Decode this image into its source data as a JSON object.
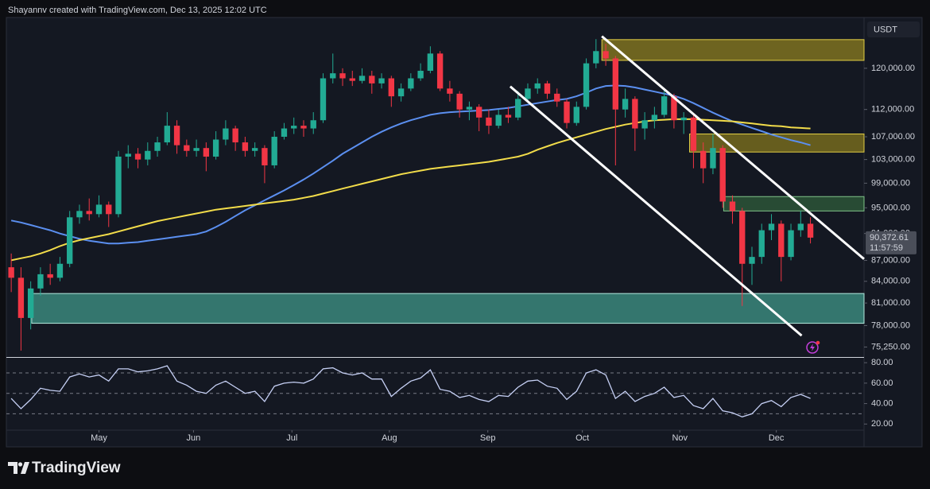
{
  "header": {
    "text": "Shayannv created with TradingView.com, Dec 13, 2025 12:02 UTC"
  },
  "footer": {
    "brand": "TradingView"
  },
  "chart_data": [
    {
      "type": "candlestick",
      "axis_label": "USDT",
      "scale": "log",
      "grid": false,
      "xlim": [
        0,
        88
      ],
      "ylim": [
        74000,
        131000
      ],
      "yticks": [
        {
          "value": 120000,
          "label": "120,000.00"
        },
        {
          "value": 112000,
          "label": "112,000.00"
        },
        {
          "value": 107000,
          "label": "107,000.00"
        },
        {
          "value": 103000,
          "label": "103,000.00"
        },
        {
          "value": 99000,
          "label": "99,000.00"
        },
        {
          "value": 95000,
          "label": "95,000.00"
        },
        {
          "value": 91000,
          "label": "91,000.00"
        },
        {
          "value": 87000,
          "label": "87,000.00"
        },
        {
          "value": 84000,
          "label": "84,000.00"
        },
        {
          "value": 81000,
          "label": "81,000.00"
        },
        {
          "value": 78000,
          "label": "78,000.00"
        },
        {
          "value": 75250,
          "label": "75,250.00"
        }
      ],
      "up_color": "#22ab94",
      "down_color": "#f23645",
      "candles": {
        "open": [
          86000,
          84500,
          79000,
          83000,
          85000,
          84500,
          86500,
          93500,
          94500,
          94000,
          95500,
          94000,
          103500,
          104000,
          103000,
          104500,
          106000,
          109000,
          105500,
          104500,
          105000,
          103500,
          106500,
          108500,
          106000,
          104500,
          105000,
          102000,
          107000,
          108500,
          109000,
          108500,
          110000,
          118000,
          119000,
          118000,
          117500,
          118500,
          117000,
          118000,
          114500,
          116000,
          118000,
          119500,
          123000,
          116000,
          115000,
          112000,
          112500,
          110500,
          109000,
          111000,
          110500,
          114000,
          116000,
          117000,
          115000,
          113500,
          109500,
          112500,
          121000,
          123500,
          122000,
          112000,
          114000,
          108500,
          110000,
          111000,
          114500,
          110000,
          110500,
          104500,
          101500,
          105000,
          96000,
          94500,
          86500,
          87500,
          91500,
          92500,
          87500,
          91500,
          92500
        ],
        "high": [
          88000,
          86000,
          84000,
          86000,
          86500,
          87500,
          94500,
          95500,
          96500,
          97000,
          96000,
          104500,
          105500,
          105000,
          106000,
          107000,
          111500,
          110000,
          106500,
          106500,
          106000,
          108000,
          110000,
          109000,
          107000,
          106000,
          105500,
          108000,
          109500,
          110500,
          110000,
          111500,
          119000,
          123000,
          120000,
          119500,
          120000,
          119500,
          119000,
          118500,
          117000,
          119000,
          121000,
          124500,
          123500,
          117500,
          115500,
          113500,
          113000,
          112000,
          112000,
          112500,
          115500,
          117000,
          118000,
          117500,
          116000,
          114000,
          113500,
          122000,
          126000,
          125000,
          122500,
          116000,
          114500,
          111500,
          112500,
          116000,
          115000,
          111500,
          111000,
          106000,
          107500,
          105500,
          97000,
          95000,
          89000,
          92500,
          94000,
          93000,
          92500,
          94500,
          93500
        ],
        "low": [
          82500,
          74800,
          77500,
          82000,
          83500,
          84000,
          86000,
          92500,
          93000,
          93500,
          92000,
          93500,
          101500,
          101500,
          102000,
          103500,
          105500,
          104000,
          103500,
          103500,
          101000,
          103000,
          105500,
          104500,
          103500,
          103500,
          99000,
          101500,
          106500,
          107500,
          107000,
          107500,
          109500,
          117000,
          116500,
          116500,
          117000,
          115000,
          116000,
          112500,
          113500,
          115500,
          117500,
          119000,
          115500,
          113500,
          110500,
          110000,
          108000,
          107500,
          108500,
          109500,
          110000,
          113500,
          115000,
          114000,
          112500,
          108500,
          109000,
          112000,
          120000,
          120500,
          102000,
          110500,
          104500,
          106500,
          108500,
          110500,
          108500,
          107500,
          101500,
          99000,
          100500,
          95000,
          92500,
          80600,
          83500,
          86500,
          90000,
          84000,
          87000,
          90500,
          89500
        ],
        "close": [
          84500,
          79000,
          83000,
          85000,
          84500,
          86500,
          93500,
          94500,
          94000,
          95500,
          94000,
          103500,
          104000,
          103000,
          104500,
          106000,
          109000,
          105500,
          104500,
          105000,
          103500,
          106500,
          108500,
          106000,
          104500,
          105000,
          102000,
          107000,
          108500,
          109000,
          108500,
          110000,
          118000,
          119000,
          118000,
          117500,
          118500,
          117000,
          118000,
          114500,
          116000,
          118000,
          119500,
          123000,
          116000,
          115000,
          112000,
          112500,
          110500,
          109000,
          111000,
          110500,
          114000,
          116000,
          117000,
          115000,
          113500,
          109500,
          112500,
          121000,
          123500,
          122000,
          112000,
          114000,
          108500,
          110000,
          111000,
          114500,
          110000,
          110500,
          104500,
          101500,
          105000,
          96000,
          94500,
          86500,
          87500,
          91500,
          92500,
          87500,
          91500,
          92500,
          90372.61
        ]
      },
      "overlays": [
        {
          "color": "#5b8ff0",
          "values": [
            93000,
            92700,
            92300,
            91900,
            91500,
            91000,
            90600,
            90200,
            89900,
            89700,
            89500,
            89500,
            89600,
            89700,
            89900,
            90100,
            90300,
            90500,
            90700,
            90900,
            91300,
            92000,
            92800,
            93700,
            94600,
            95400,
            96200,
            97000,
            97800,
            98700,
            99600,
            100600,
            101700,
            102800,
            104000,
            105000,
            106000,
            107000,
            107900,
            108700,
            109400,
            110000,
            110500,
            111000,
            111300,
            111500,
            111600,
            111700,
            111800,
            111900,
            112100,
            112300,
            112600,
            112900,
            113200,
            113500,
            113800,
            114000,
            114500,
            115200,
            116000,
            116500,
            116600,
            116500,
            116200,
            115800,
            115400,
            115000,
            114600,
            114000,
            113200,
            112300,
            111400,
            110600,
            109800,
            109200,
            108600,
            108000,
            107400,
            106900,
            106400,
            106000,
            105500
          ]
        },
        {
          "color": "#f2dc4a",
          "values": [
            87000,
            87300,
            87600,
            88000,
            88500,
            89100,
            89600,
            90000,
            90300,
            90600,
            90900,
            91300,
            91700,
            92100,
            92500,
            92900,
            93200,
            93500,
            93800,
            94100,
            94400,
            94700,
            94900,
            95100,
            95300,
            95500,
            95700,
            95900,
            96100,
            96300,
            96600,
            96900,
            97300,
            97700,
            98100,
            98500,
            98900,
            99300,
            99700,
            100100,
            100500,
            100800,
            101100,
            101400,
            101600,
            101800,
            102000,
            102200,
            102400,
            102600,
            102900,
            103200,
            103500,
            104000,
            104700,
            105300,
            105900,
            106400,
            106900,
            107400,
            107900,
            108400,
            108800,
            109200,
            109500,
            109800,
            110000,
            110100,
            110200,
            110200,
            110200,
            110100,
            110000,
            109900,
            109800,
            109600,
            109400,
            109200,
            109000,
            108900,
            108700,
            108600,
            108500
          ]
        }
      ],
      "zones": [
        {
          "color": "#7e7220",
          "border": "#e3cf45",
          "x": [
            61.1,
            88
          ],
          "range": [
            121600,
            125900
          ]
        },
        {
          "color": "#746a1d",
          "border": "#e3cf45",
          "x": [
            70.1,
            88
          ],
          "range": [
            104300,
            107500
          ]
        },
        {
          "color": "#2c5537",
          "border": "#7fc489",
          "x": [
            73.6,
            88
          ],
          "range": [
            94500,
            96800
          ]
        },
        {
          "color": "#3a877b",
          "border": "#b4eadf",
          "x": [
            2.6,
            88
          ],
          "range": [
            78300,
            82300
          ]
        }
      ],
      "lines": [
        {
          "color": "#ffffff",
          "x": [
            61.1,
            88
          ],
          "y": [
            126600,
            87200
          ]
        },
        {
          "color": "#ffffff",
          "x": [
            51.7,
            81.6
          ],
          "y": [
            116400,
            76700
          ]
        }
      ],
      "last_price": {
        "value": 90372.61,
        "label": "90,372.61"
      },
      "countdown": "11:57:59"
    },
    {
      "type": "line",
      "xlim": [
        0,
        88
      ],
      "ylim": [
        14,
        84
      ],
      "yticks": [
        {
          "value": 80,
          "label": "80.00"
        },
        {
          "value": 60,
          "label": "60.00"
        },
        {
          "value": 40,
          "label": "40.00"
        },
        {
          "value": 20,
          "label": "20.00"
        }
      ],
      "levels": [
        70,
        50,
        30
      ],
      "xticks": [
        {
          "value": 9.5,
          "label": "May"
        },
        {
          "value": 19.2,
          "label": "Jun"
        },
        {
          "value": 29.3,
          "label": "Jul"
        },
        {
          "value": 39.3,
          "label": "Aug"
        },
        {
          "value": 49.4,
          "label": "Sep"
        },
        {
          "value": 59.1,
          "label": "Oct"
        },
        {
          "value": 69.1,
          "label": "Nov"
        },
        {
          "value": 79,
          "label": "Dec"
        }
      ],
      "color": "#c6d0f5",
      "values": [
        45,
        35,
        44,
        55,
        53,
        52,
        66,
        69,
        66,
        68,
        62,
        74,
        74,
        71,
        72,
        74,
        77,
        62,
        58,
        52,
        50,
        58,
        62,
        56,
        50,
        52,
        42,
        57,
        60,
        61,
        60,
        64,
        74,
        75,
        70,
        68,
        70,
        64,
        64,
        47,
        55,
        62,
        65,
        73,
        54,
        52,
        46,
        48,
        44,
        42,
        48,
        47,
        56,
        62,
        63,
        57,
        55,
        44,
        52,
        70,
        73,
        68,
        45,
        52,
        42,
        47,
        50,
        56,
        46,
        48,
        38,
        35,
        45,
        33,
        31,
        27,
        30,
        40,
        43,
        37,
        46,
        49,
        45
      ]
    }
  ]
}
